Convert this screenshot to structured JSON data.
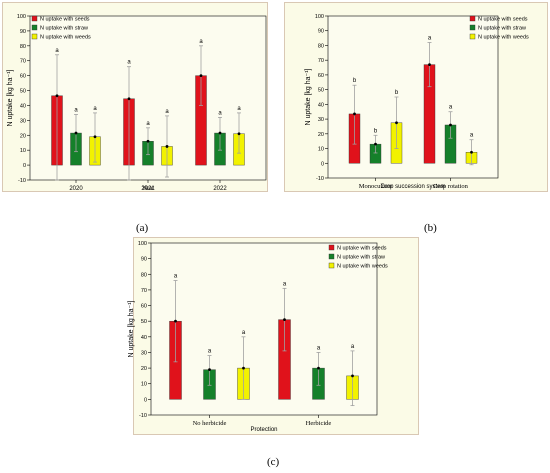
{
  "colors": {
    "seeds": "#e0121b",
    "straw": "#15802a",
    "weeds": "#f2f200",
    "panel_bg": "#fbfbe7",
    "frame": "#d9c8b4",
    "whisker": "#a0a0a0",
    "text": "#000000"
  },
  "chart_data": [
    {
      "type": "bar",
      "panel": "(a)",
      "categories": [
        "2020",
        "2021",
        "2022"
      ],
      "xlabel": "Year",
      "ylabel": "N uptake [kg ha⁻¹]",
      "ylim": [
        -10,
        100
      ],
      "yticks": [
        -10,
        0,
        10,
        20,
        30,
        40,
        50,
        60,
        70,
        80,
        90,
        100
      ],
      "legend_position": "top-right",
      "series": [
        {
          "name": "N uptake with  seeds",
          "color_key": "seeds",
          "values": [
            46.5,
            44.5,
            60
          ],
          "err_low": [
            -10,
            -10,
            40
          ],
          "err_high": [
            74,
            66,
            80
          ],
          "letters": [
            "a",
            "a",
            "a"
          ]
        },
        {
          "name": "N uptake with straw",
          "color_key": "straw",
          "values": [
            21.5,
            16,
            21.5
          ],
          "err_low": [
            9,
            7,
            10
          ],
          "err_high": [
            34,
            25,
            32
          ],
          "letters": [
            "a",
            "a",
            "a"
          ]
        },
        {
          "name": "N uptake with weeds",
          "color_key": "weeds",
          "values": [
            19,
            12.5,
            21
          ],
          "err_low": [
            2,
            -8,
            8
          ],
          "err_high": [
            35,
            33,
            35
          ],
          "letters": [
            "a",
            "a",
            "a"
          ]
        }
      ]
    },
    {
      "type": "bar",
      "panel": "(b)",
      "categories": [
        "Monoculture",
        "Crop rotation"
      ],
      "xlabel": "Crop succession system",
      "ylabel": "N uptake [kg ha⁻¹]",
      "ylim": [
        -10,
        100
      ],
      "yticks": [
        -10,
        0,
        10,
        20,
        30,
        40,
        50,
        60,
        70,
        80,
        90,
        100
      ],
      "legend_position": "top-right",
      "series": [
        {
          "name": "N uptake with  seeds",
          "color_key": "seeds",
          "values": [
            33.5,
            67
          ],
          "err_low": [
            13,
            52
          ],
          "err_high": [
            53,
            82
          ],
          "letters": [
            "b",
            "a"
          ]
        },
        {
          "name": "N uptake with straw",
          "color_key": "straw",
          "values": [
            13,
            26
          ],
          "err_low": [
            7,
            17
          ],
          "err_high": [
            19,
            35
          ],
          "letters": [
            "b",
            "a"
          ]
        },
        {
          "name": "N uptake with weeds",
          "color_key": "weeds",
          "values": [
            27.5,
            7.5
          ],
          "err_low": [
            10,
            -1
          ],
          "err_high": [
            45,
            16
          ],
          "letters": [
            "b",
            "a"
          ]
        }
      ]
    },
    {
      "type": "bar",
      "panel": "(c)",
      "categories": [
        "No herbicide",
        "Herbicide"
      ],
      "xlabel": "Protection",
      "ylabel": "N uptake [kg ha⁻¹]",
      "ylim": [
        -10,
        100
      ],
      "yticks": [
        -10,
        0,
        10,
        20,
        30,
        40,
        50,
        60,
        70,
        80,
        90,
        100
      ],
      "legend_position": "top-right",
      "series": [
        {
          "name": "N uptake with  seeds",
          "color_key": "seeds",
          "values": [
            50,
            51
          ],
          "err_low": [
            24,
            31
          ],
          "err_high": [
            76,
            71
          ],
          "letters": [
            "a",
            "a"
          ]
        },
        {
          "name": "N uptake with straw",
          "color_key": "straw",
          "values": [
            19,
            20
          ],
          "err_low": [
            9,
            9
          ],
          "err_high": [
            28,
            30
          ],
          "letters": [
            "a",
            "a"
          ]
        },
        {
          "name": "N uptake with weeds",
          "color_key": "weeds",
          "values": [
            20,
            15
          ],
          "err_low": [
            0,
            -4
          ],
          "err_high": [
            40,
            31
          ],
          "letters": [
            "a",
            "a"
          ]
        }
      ]
    }
  ]
}
